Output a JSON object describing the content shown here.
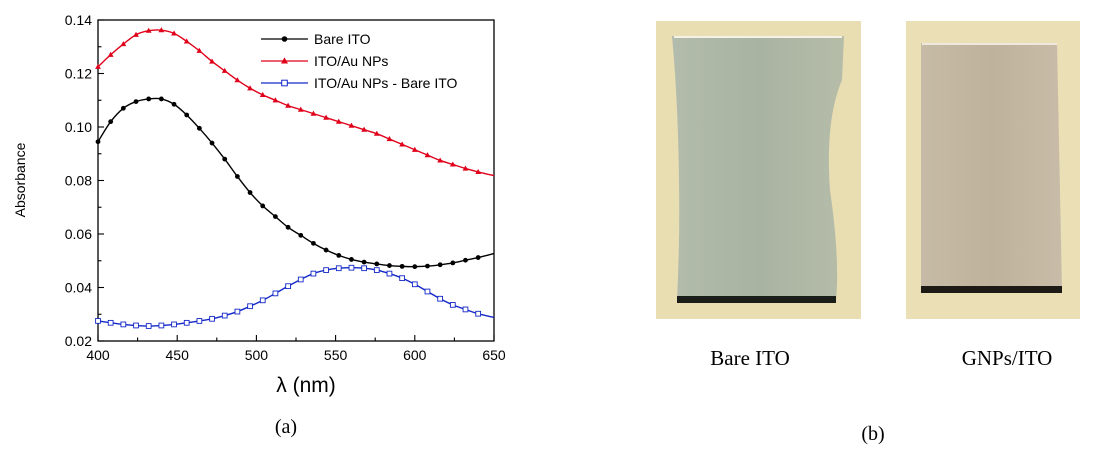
{
  "panel_a": {
    "label": "(a)",
    "chart_data": {
      "type": "line",
      "title": "",
      "xlabel": "λ (nm)",
      "ylabel": "Absorbance",
      "xlim": [
        400,
        650
      ],
      "ylim": [
        0.02,
        0.14
      ],
      "x_ticks": [
        "400",
        "450",
        "500",
        "550",
        "600",
        "650"
      ],
      "y_ticks": [
        "0.02",
        "0.04",
        "0.06",
        "0.08",
        "0.10",
        "0.12",
        "0.14"
      ],
      "grid": false,
      "legend_position": "top-right",
      "x": [
        400,
        408,
        416,
        424,
        432,
        440,
        448,
        456,
        464,
        472,
        480,
        488,
        496,
        504,
        512,
        520,
        528,
        536,
        544,
        552,
        560,
        568,
        576,
        584,
        592,
        600,
        608,
        616,
        624,
        632,
        640,
        650
      ],
      "series": [
        {
          "name": "Bare ITO",
          "color": "#000000",
          "marker": "circle",
          "values": [
            0.0945,
            0.102,
            0.107,
            0.1095,
            0.1105,
            0.1105,
            0.1085,
            0.1045,
            0.0995,
            0.094,
            0.088,
            0.0815,
            0.0755,
            0.0705,
            0.0665,
            0.0625,
            0.0595,
            0.0565,
            0.054,
            0.052,
            0.0505,
            0.0495,
            0.0488,
            0.0482,
            0.0479,
            0.0478,
            0.048,
            0.0485,
            0.0492,
            0.0502,
            0.0512,
            0.0527
          ]
        },
        {
          "name": "ITO/Au NPs",
          "color": "#e0001a",
          "marker": "triangle",
          "values": [
            0.1225,
            0.127,
            0.131,
            0.1345,
            0.136,
            0.1362,
            0.135,
            0.132,
            0.1285,
            0.1245,
            0.121,
            0.1175,
            0.1145,
            0.112,
            0.11,
            0.108,
            0.1065,
            0.105,
            0.1035,
            0.102,
            0.1005,
            0.099,
            0.0975,
            0.0955,
            0.0935,
            0.0915,
            0.0895,
            0.0875,
            0.086,
            0.0845,
            0.0832,
            0.0818
          ]
        },
        {
          "name": "ITO/Au NPs - Bare ITO",
          "color": "#1428c8",
          "marker": "square-open",
          "values": [
            0.0275,
            0.0268,
            0.0262,
            0.0258,
            0.0256,
            0.0258,
            0.0262,
            0.0268,
            0.0275,
            0.0283,
            0.0295,
            0.031,
            0.033,
            0.0352,
            0.0378,
            0.0405,
            0.043,
            0.0452,
            0.0465,
            0.0472,
            0.0474,
            0.0472,
            0.0465,
            0.0452,
            0.0435,
            0.0412,
            0.0385,
            0.0358,
            0.0335,
            0.0318,
            0.0302,
            0.0288
          ]
        }
      ]
    }
  },
  "panel_b": {
    "label": "(b)",
    "photos": [
      {
        "caption": "Bare ITO",
        "sample_color": "#aeb7a6",
        "frame_color": "#e9ddb2"
      },
      {
        "caption": "GNPs/ITO",
        "sample_color": "#c3b7a3",
        "frame_color": "#ebdfb6"
      }
    ]
  }
}
